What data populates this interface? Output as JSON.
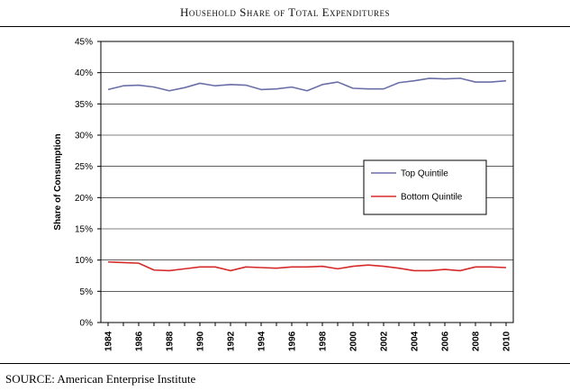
{
  "title": "Household Share of Total Expenditures",
  "source": "SOURCE: American Enterprise Institute",
  "colors": {
    "top": "#6b6fa8",
    "bottom": "#d62a2a"
  },
  "chart_data": {
    "type": "line",
    "ylabel": "Share of Consumption",
    "xlabel": "",
    "ylim": [
      0,
      45
    ],
    "y_ticks": [
      "0%",
      "5%",
      "10%",
      "15%",
      "20%",
      "25%",
      "30%",
      "35%",
      "40%",
      "45%"
    ],
    "x_ticks": [
      "1984",
      "1986",
      "1988",
      "1990",
      "1992",
      "1994",
      "1996",
      "1998",
      "2000",
      "2002",
      "2004",
      "2006",
      "2008",
      "2010"
    ],
    "x": [
      1984,
      1985,
      1986,
      1987,
      1988,
      1989,
      1990,
      1991,
      1992,
      1993,
      1994,
      1995,
      1996,
      1997,
      1998,
      1999,
      2000,
      2001,
      2002,
      2003,
      2004,
      2005,
      2006,
      2007,
      2008,
      2009,
      2010
    ],
    "legend_position": "right",
    "grid": "horizontal",
    "series": [
      {
        "name": "Top Quintile",
        "color": "#6b6fa8",
        "values": [
          37.3,
          37.9,
          38.0,
          37.7,
          37.1,
          37.6,
          38.3,
          37.9,
          38.1,
          38.0,
          37.3,
          37.4,
          37.7,
          37.1,
          38.1,
          38.5,
          37.5,
          37.4,
          37.4,
          38.4,
          38.7,
          39.1,
          39.0,
          39.1,
          38.5,
          38.5,
          38.7
        ]
      },
      {
        "name": "Bottom Quintile",
        "color": "#d62a2a",
        "values": [
          9.7,
          9.6,
          9.5,
          8.4,
          8.3,
          8.6,
          8.9,
          8.9,
          8.3,
          8.9,
          8.8,
          8.7,
          8.9,
          8.9,
          9.0,
          8.6,
          9.0,
          9.2,
          9.0,
          8.7,
          8.3,
          8.3,
          8.5,
          8.3,
          8.9,
          8.9,
          8.8
        ]
      }
    ]
  }
}
